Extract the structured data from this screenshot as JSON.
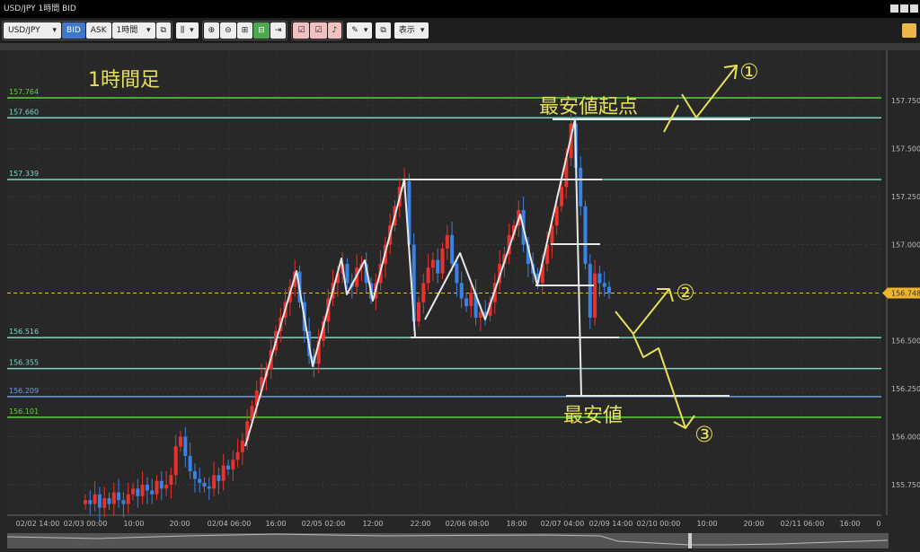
{
  "window": {
    "title": "USD/JPY 1時間 BID"
  },
  "toolbar": {
    "symbol": "USD/JPY",
    "bid": "BID",
    "ask": "ASK",
    "timeframe": "1時間",
    "display": "表示",
    "caret": "▾"
  },
  "colors": {
    "up": "#e8322c",
    "down": "#3b82e6",
    "green_line": "#5ed23a",
    "teal_line": "#7fd4c6",
    "blue_line": "#6a9de0",
    "current": "#f0b429",
    "annotation": "#e6e05a",
    "drawing": "#e8e8e8"
  },
  "price_axis": {
    "ticks": [
      "157.750",
      "157.500",
      "157.250",
      "157.000",
      "156.500",
      "156.250",
      "156.000",
      "155.750"
    ],
    "current": "156.748"
  },
  "levels": [
    {
      "label": "157.764",
      "value": 157.764,
      "color": "green"
    },
    {
      "label": "157.660",
      "value": 157.66,
      "color": "teal"
    },
    {
      "label": "157.339",
      "value": 157.339,
      "color": "teal"
    },
    {
      "label": "156.516",
      "value": 156.516,
      "color": "teal"
    },
    {
      "label": "156.355",
      "value": 156.355,
      "color": "teal"
    },
    {
      "label": "156.209",
      "value": 156.209,
      "color": "blue"
    },
    {
      "label": "156.101",
      "value": 156.101,
      "color": "green"
    }
  ],
  "time_axis": [
    "02/02 14:00",
    "02/03 00:00",
    "10:00",
    "20:00",
    "02/04 06:00",
    "16:00",
    "02/05 02:00",
    "12:00",
    "22:00",
    "02/06 08:00",
    "18:00",
    "02/07 04:00",
    "02/09 14:00",
    "02/10 00:00",
    "10:00",
    "20:00",
    "02/11 06:00",
    "16:00",
    "0"
  ],
  "annotations": {
    "timeframe": "1時間足",
    "low_origin": "最安値起点",
    "low": "最安値",
    "scenario1": "①",
    "scenario2": "②",
    "scenario3": "③"
  },
  "chart_data": {
    "type": "candlestick",
    "ylim": [
      155.65,
      157.85
    ],
    "closes": [
      155.67,
      155.65,
      155.7,
      155.63,
      155.68,
      155.65,
      155.71,
      155.67,
      155.65,
      155.7,
      155.73,
      155.69,
      155.75,
      155.72,
      155.7,
      155.77,
      155.73,
      155.75,
      155.8,
      155.95,
      156.0,
      155.9,
      155.82,
      155.78,
      155.76,
      155.74,
      155.73,
      155.8,
      155.77,
      155.85,
      155.83,
      155.88,
      155.92,
      155.98,
      156.08,
      156.16,
      156.24,
      156.31,
      156.35,
      156.45,
      156.55,
      156.62,
      156.7,
      156.78,
      156.86,
      156.7,
      156.55,
      156.42,
      156.38,
      156.5,
      156.6,
      156.72,
      156.8,
      156.85,
      156.9,
      156.8,
      156.78,
      156.88,
      156.9,
      156.8,
      156.72,
      156.8,
      156.9,
      157.0,
      157.1,
      157.2,
      157.3,
      157.33,
      157.0,
      156.6,
      156.7,
      156.8,
      156.88,
      156.92,
      156.85,
      156.98,
      157.05,
      156.9,
      156.8,
      156.72,
      156.68,
      156.75,
      156.62,
      156.65,
      156.63,
      156.7,
      156.8,
      156.9,
      156.95,
      157.05,
      157.1,
      157.18,
      157.0,
      156.9,
      156.85,
      156.8,
      156.9,
      157.0,
      157.1,
      157.2,
      157.3,
      157.45,
      157.63,
      157.4,
      157.2,
      156.9,
      156.62,
      156.85,
      156.8,
      156.78,
      156.748
    ]
  }
}
